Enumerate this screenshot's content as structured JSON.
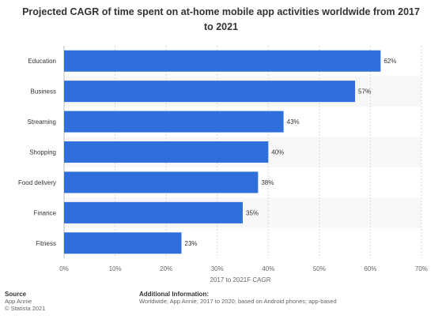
{
  "title_lines": [
    "Projected CAGR of time spent on at-home mobile app activities worldwide from 2017",
    "to 2021"
  ],
  "chart_data": {
    "type": "bar",
    "orientation": "horizontal",
    "categories": [
      "Education",
      "Business",
      "Streaming",
      "Shopping",
      "Food delivery",
      "Finance",
      "Fitness"
    ],
    "values": [
      62,
      57,
      43,
      40,
      38,
      35,
      23
    ],
    "value_labels": [
      "62%",
      "57%",
      "43%",
      "40%",
      "38%",
      "35%",
      "23%"
    ],
    "xlabel": "2017 to 2021F CAGR",
    "ylabel": "",
    "xlim": [
      0,
      70
    ],
    "xticks": [
      0,
      10,
      20,
      30,
      40,
      50,
      60,
      70
    ],
    "xtick_labels": [
      "0%",
      "10%",
      "20%",
      "30%",
      "40%",
      "50%",
      "60%",
      "70%"
    ],
    "bar_color": "#2f6fdb",
    "grid": true,
    "legend": "none"
  },
  "footer": {
    "source_heading": "Source",
    "source_lines": [
      "App Annie",
      "© Statista 2021"
    ],
    "info_heading": "Additional Information:",
    "info_text": "Worldwide; App Annie; 2017 to 2020; based on Android phones; app-based"
  }
}
